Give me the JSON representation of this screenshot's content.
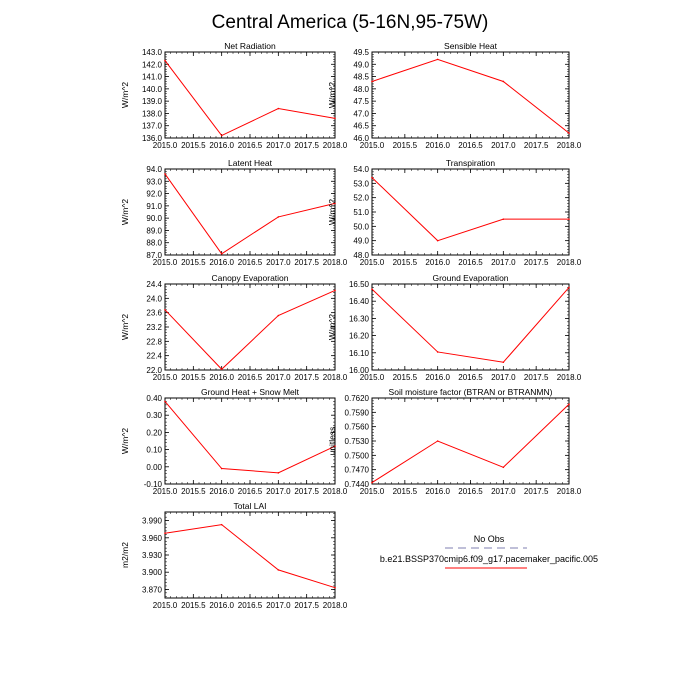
{
  "figure": {
    "title": "Central America (5-16N,95-75W)"
  },
  "legend": {
    "items": [
      {
        "label": "No Obs",
        "color": "#aaaacc",
        "dashed": true
      },
      {
        "label": "b.e21.BSSP370cmip6.f09_g17.pacemaker_pacific.005",
        "color": "#ff0000",
        "dashed": false
      }
    ]
  },
  "chart_data": [
    {
      "type": "line",
      "title": "Net Radiation",
      "ylabel": "W/m^2",
      "x": [
        2015.0,
        2016.0,
        2017.0,
        2018.0
      ],
      "y": [
        142.3,
        136.2,
        138.4,
        137.6
      ],
      "xlim": [
        2015.0,
        2018.0
      ],
      "ylim": [
        136.0,
        143.0
      ],
      "xticks": [
        "2015.0",
        "2015.5",
        "2016.0",
        "2016.5",
        "2017.0",
        "2017.5",
        "2018.0"
      ],
      "yticks": [
        "143.0",
        "142.0",
        "141.0",
        "140.0",
        "139.0",
        "138.0",
        "137.0",
        "136.0"
      ],
      "series_color": "#ff0000"
    },
    {
      "type": "line",
      "title": "Sensible Heat",
      "ylabel": "W/m^2",
      "x": [
        2015.0,
        2016.0,
        2017.0,
        2018.0
      ],
      "y": [
        48.3,
        49.2,
        48.3,
        46.2
      ],
      "xlim": [
        2015.0,
        2018.0
      ],
      "ylim": [
        46.0,
        49.5
      ],
      "xticks": [
        "2015.0",
        "2015.5",
        "2016.0",
        "2016.5",
        "2017.0",
        "2017.5",
        "2018.0"
      ],
      "yticks": [
        "49.5",
        "49.0",
        "48.5",
        "48.0",
        "47.5",
        "47.0",
        "46.5",
        "46.0"
      ],
      "series_color": "#ff0000"
    },
    {
      "type": "line",
      "title": "Latent Heat",
      "ylabel": "W/m^2",
      "x": [
        2015.0,
        2016.0,
        2017.0,
        2018.0
      ],
      "y": [
        93.6,
        87.1,
        90.1,
        91.2
      ],
      "xlim": [
        2015.0,
        2018.0
      ],
      "ylim": [
        87.0,
        94.0
      ],
      "xticks": [
        "2015.0",
        "2015.5",
        "2016.0",
        "2016.5",
        "2017.0",
        "2017.5",
        "2018.0"
      ],
      "yticks": [
        "94.0",
        "93.0",
        "92.0",
        "91.0",
        "90.0",
        "89.0",
        "88.0",
        "87.0"
      ],
      "series_color": "#ff0000"
    },
    {
      "type": "line",
      "title": "Transpiration",
      "ylabel": "W/m^2",
      "x": [
        2015.0,
        2016.0,
        2017.0,
        2018.0
      ],
      "y": [
        53.4,
        49.0,
        50.5,
        50.5
      ],
      "xlim": [
        2015.0,
        2018.0
      ],
      "ylim": [
        48.0,
        54.0
      ],
      "xticks": [
        "2015.0",
        "2015.5",
        "2016.0",
        "2016.5",
        "2017.0",
        "2017.5",
        "2018.0"
      ],
      "yticks": [
        "54.0",
        "53.0",
        "52.0",
        "51.0",
        "50.0",
        "49.0",
        "48.0"
      ],
      "series_color": "#ff0000"
    },
    {
      "type": "line",
      "title": "Canopy Evaporation",
      "ylabel": "W/m^2",
      "x": [
        2015.0,
        2016.0,
        2017.0,
        2018.0
      ],
      "y": [
        23.68,
        22.02,
        23.52,
        24.22
      ],
      "xlim": [
        2015.0,
        2018.0
      ],
      "ylim": [
        22.0,
        24.4
      ],
      "xticks": [
        "2015.0",
        "2015.5",
        "2016.0",
        "2016.5",
        "2017.0",
        "2017.5",
        "2018.0"
      ],
      "yticks": [
        "24.4",
        "24.0",
        "23.6",
        "23.2",
        "22.8",
        "22.4",
        "22.0"
      ],
      "series_color": "#ff0000"
    },
    {
      "type": "line",
      "title": "Ground Evaporation",
      "ylabel": "W/m^2",
      "x": [
        2015.0,
        2016.0,
        2017.0,
        2018.0
      ],
      "y": [
        16.47,
        16.105,
        16.045,
        16.48
      ],
      "xlim": [
        2015.0,
        2018.0
      ],
      "ylim": [
        16.0,
        16.5
      ],
      "xticks": [
        "2015.0",
        "2015.5",
        "2016.0",
        "2016.5",
        "2017.0",
        "2017.5",
        "2018.0"
      ],
      "yticks": [
        "16.50",
        "16.40",
        "16.30",
        "16.20",
        "16.10",
        "16.00"
      ],
      "series_color": "#ff0000"
    },
    {
      "type": "line",
      "title": "Ground Heat + Snow Melt",
      "ylabel": "W/m^2",
      "x": [
        2015.0,
        2016.0,
        2017.0,
        2018.0
      ],
      "y": [
        0.38,
        -0.01,
        -0.035,
        0.12
      ],
      "xlim": [
        2015.0,
        2018.0
      ],
      "ylim": [
        -0.1,
        0.4
      ],
      "xticks": [
        "2015.0",
        "2015.5",
        "2016.0",
        "2016.5",
        "2017.0",
        "2017.5",
        "2018.0"
      ],
      "yticks": [
        "0.40",
        "0.30",
        "0.20",
        "0.10",
        "0.00",
        "-0.10"
      ],
      "series_color": "#ff0000"
    },
    {
      "type": "line",
      "title": "Soil moisture factor (BTRAN or BTRANMN)",
      "ylabel": "unitless",
      "x": [
        2015.0,
        2016.0,
        2017.0,
        2018.0
      ],
      "y": [
        0.7443,
        0.753,
        0.7475,
        0.7607
      ],
      "xlim": [
        2015.0,
        2018.0
      ],
      "ylim": [
        0.744,
        0.762
      ],
      "xticks": [
        "2015.0",
        "2015.5",
        "2016.0",
        "2016.5",
        "2017.0",
        "2017.5",
        "2018.0"
      ],
      "yticks": [
        "0.7620",
        "0.7590",
        "0.7560",
        "0.7530",
        "0.7500",
        "0.7470",
        "0.7440"
      ],
      "series_color": "#ff0000"
    },
    {
      "type": "line",
      "title": "Total LAI",
      "ylabel": "m2/m2",
      "x": [
        2015.0,
        2016.0,
        2017.0,
        2018.0
      ],
      "y": [
        3.968,
        3.983,
        3.904,
        3.873
      ],
      "xlim": [
        2015.0,
        2018.0
      ],
      "ylim": [
        3.855,
        4.005
      ],
      "xticks": [
        "2015.0",
        "2015.5",
        "2016.0",
        "2016.5",
        "2017.0",
        "2017.5",
        "2018.0"
      ],
      "yticks": [
        "3.990",
        "3.960",
        "3.930",
        "3.900",
        "3.870"
      ],
      "series_color": "#ff0000"
    }
  ]
}
